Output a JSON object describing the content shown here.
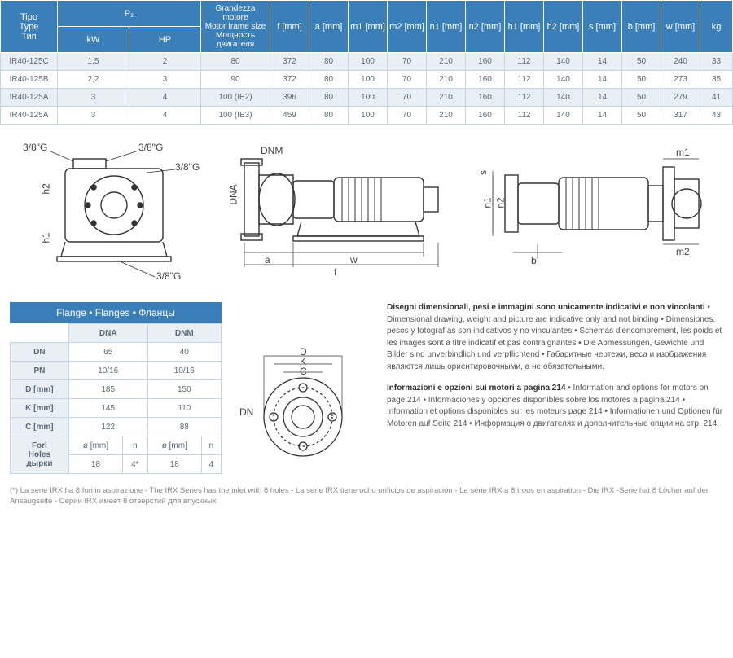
{
  "headers": {
    "type": "Tipo\nType\nТип",
    "p2": "P₂",
    "kw": "kW",
    "hp": "HP",
    "motor": "Grandezza motore\nMotor frame size\nМощность двигателя",
    "f": "f [mm]",
    "a": "a [mm]",
    "m1": "m1 [mm]",
    "m2": "m2 [mm]",
    "n1": "n1 [mm]",
    "n2": "n2 [mm]",
    "h1": "h1 [mm]",
    "h2": "h2 [mm]",
    "s": "s [mm]",
    "b": "b [mm]",
    "w": "w [mm]",
    "kg": "kg"
  },
  "rows": [
    {
      "type": "IR40-125C",
      "kw": "1,5",
      "hp": "2",
      "motor": "80",
      "f": "372",
      "a": "80",
      "m1": "100",
      "m2": "70",
      "n1": "210",
      "n2": "160",
      "h1": "112",
      "h2": "140",
      "s": "14",
      "b": "50",
      "w": "240",
      "kg": "33"
    },
    {
      "type": "IR40-125B",
      "kw": "2,2",
      "hp": "3",
      "motor": "90",
      "f": "372",
      "a": "80",
      "m1": "100",
      "m2": "70",
      "n1": "210",
      "n2": "160",
      "h1": "112",
      "h2": "140",
      "s": "14",
      "b": "50",
      "w": "273",
      "kg": "35"
    },
    {
      "type": "IR40-125A",
      "kw": "3",
      "hp": "4",
      "motor": "100 (IE2)",
      "f": "396",
      "a": "80",
      "m1": "100",
      "m2": "70",
      "n1": "210",
      "n2": "160",
      "h1": "112",
      "h2": "140",
      "s": "14",
      "b": "50",
      "w": "279",
      "kg": "41"
    },
    {
      "type": "IR40-125A",
      "kw": "3",
      "hp": "4",
      "motor": "100 (IE3)",
      "f": "459",
      "a": "80",
      "m1": "100",
      "m2": "70",
      "n1": "210",
      "n2": "160",
      "h1": "112",
      "h2": "140",
      "s": "14",
      "b": "50",
      "w": "317",
      "kg": "43"
    }
  ],
  "diag_labels": {
    "g38": "3/8\"G",
    "h1": "h1",
    "h2": "h2",
    "dnm": "DNM",
    "dna": "DNA",
    "a": "a",
    "w": "w",
    "f": "f",
    "m1": "m1",
    "m2": "m2",
    "n1": "n1",
    "n2": "n2",
    "s": "s",
    "b": "b"
  },
  "flange": {
    "title": "Flange • Flanges • Фланцы",
    "cols": {
      "dna": "DNA",
      "dnm": "DNM"
    },
    "rows_labels": {
      "dn": "DN",
      "pn": "PN",
      "d": "D [mm]",
      "k": "K [mm]",
      "c": "C [mm]",
      "fori": "Fori\nHoles\nдырки"
    },
    "dn": {
      "dna": "65",
      "dnm": "40"
    },
    "pn": {
      "dna": "10/16",
      "dnm": "10/16"
    },
    "d": {
      "dna": "185",
      "dnm": "150"
    },
    "k": {
      "dna": "145",
      "dnm": "110"
    },
    "c": {
      "dna": "122",
      "dnm": "88"
    },
    "fori_sub": {
      "diam": "ø [mm]",
      "n": "n"
    },
    "fori": {
      "dna_d": "18",
      "dna_n": "4*",
      "dnm_d": "18",
      "dnm_n": "4"
    },
    "diag": {
      "d": "D",
      "k": "K",
      "c": "C",
      "dn": "DN"
    }
  },
  "right_text": {
    "p1_bold": "Disegni dimensionali, pesi e immagini sono unicamente indicativi e non vincolanti",
    "p1_rest": " • Dimensional drawing, weight and picture are indicative only and not binding • Dimensiones, pesos y fotografías son indicativos y no vinculantes • Schemas d'encombrement, les poids et les images sont a titre indicatif et pas contraignantes • Die Abmessungen, Gewichte und Bilder sind unverbindlich und verpflichtend • Габаритные чертежи, веса и изображения являются лишь ориентировочными, а не обязательными.",
    "p2_bold": "Informazioni e opzioni sui motori a pagina 214",
    "p2_rest": " • Information and options for motors on page 214 • Informaciones y opciones disponibles sobre los motores a pagina 214 • Information et options disponibles sur les moteurs page 214 • Informationen und Optionen für Motoren auf Seite 214 • Информация о двигателях и дополнительные опции на стр. 214."
  },
  "footnote": "(*) La serie IRX ha 8 fori in aspirazione - The IRX Series has the inlet with 8 holes -  La serie IRX tiene ocho orificios de aspiración - La série IRX a 8 trous en aspiration - Die IRX -Serie hat 8 Löcher auf der Ansaugseite - Серии IRX имеет 8 отверстий для впускных",
  "colors": {
    "header_bg": "#3a7fb8",
    "header_text": "#ffffff",
    "row_odd_bg": "#e8eff5",
    "row_even_bg": "#ffffff",
    "border": "#c5d5e3",
    "text": "#5a6a78"
  }
}
